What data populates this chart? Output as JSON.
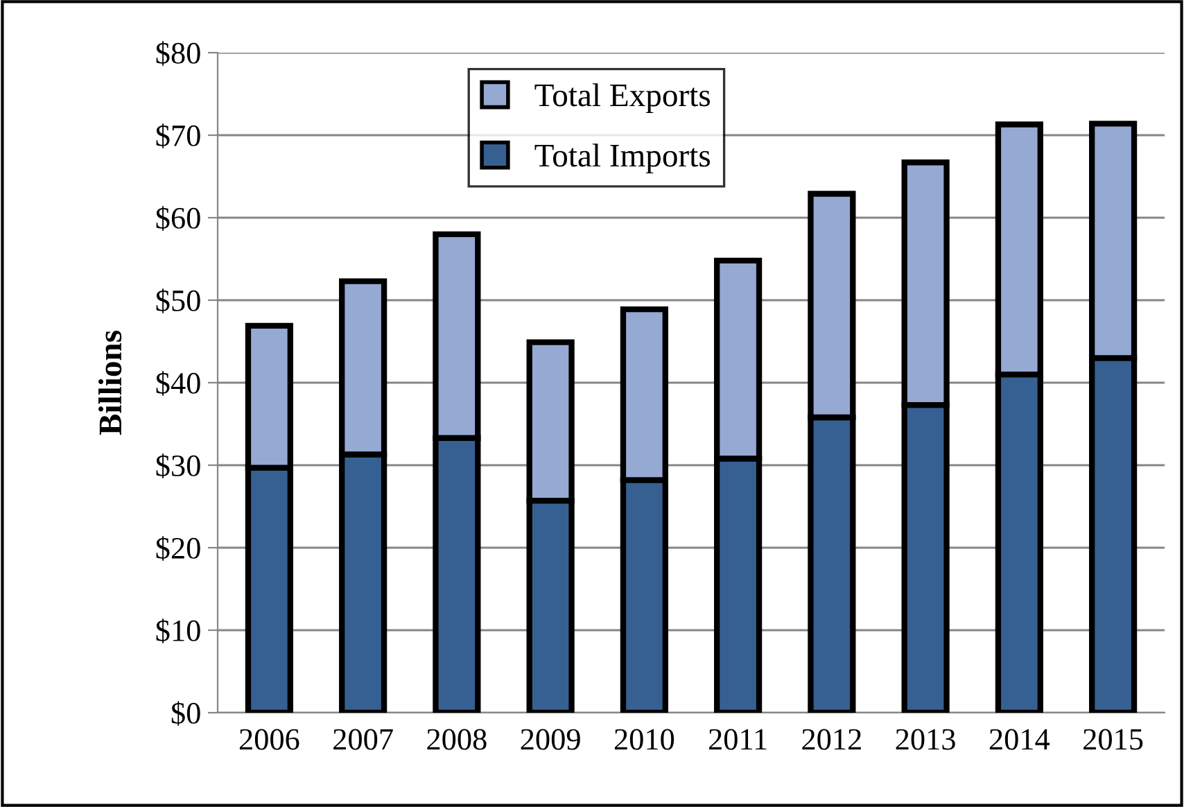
{
  "chart_data": {
    "type": "bar",
    "stacked": true,
    "ylabel": "Billions",
    "categories": [
      "2006",
      "2007",
      "2008",
      "2009",
      "2010",
      "2011",
      "2012",
      "2013",
      "2014",
      "2015"
    ],
    "series": [
      {
        "name": "Total Imports",
        "color": "#376092",
        "values": [
          29.7,
          31.3,
          33.3,
          25.7,
          28.2,
          30.8,
          35.8,
          37.3,
          41.0,
          43.0
        ]
      },
      {
        "name": "Total Exports",
        "color": "#95a9d2",
        "values": [
          17.2,
          21.0,
          24.7,
          19.2,
          20.7,
          24.0,
          27.1,
          29.4,
          30.3,
          28.4
        ]
      }
    ],
    "ylim": [
      0,
      80
    ],
    "yticks": [
      {
        "value": 0,
        "label": "$0"
      },
      {
        "value": 10,
        "label": "$10"
      },
      {
        "value": 20,
        "label": "$20"
      },
      {
        "value": 30,
        "label": "$30"
      },
      {
        "value": 40,
        "label": "$40"
      },
      {
        "value": 50,
        "label": "$50"
      },
      {
        "value": 60,
        "label": "$60"
      },
      {
        "value": 70,
        "label": "$70"
      },
      {
        "value": 80,
        "label": "$80"
      }
    ],
    "grid": "y",
    "legend": "top"
  }
}
